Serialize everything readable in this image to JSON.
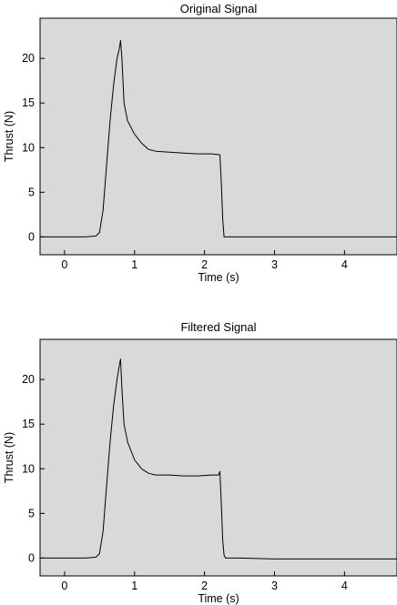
{
  "chart_data": [
    {
      "type": "line",
      "title": "Original Signal",
      "xlabel": "Time (s)",
      "ylabel": "Thrust (N)",
      "xlim": [
        -0.35,
        4.75
      ],
      "ylim": [
        -2,
        24.5
      ],
      "xticks": [
        0,
        1,
        2,
        3,
        4
      ],
      "yticks": [
        0,
        5,
        10,
        15,
        20
      ],
      "xtick_labels": [
        "0",
        "1",
        "2",
        "3",
        "4"
      ],
      "ytick_labels": [
        "0",
        "5",
        "10",
        "15",
        "20"
      ],
      "background": "#d9d9d9",
      "line_color": "#000000",
      "grid": false,
      "series": [
        {
          "x": [
            -0.35,
            0.0,
            0.3,
            0.45,
            0.5,
            0.55,
            0.6,
            0.65,
            0.7,
            0.75,
            0.78,
            0.8,
            0.82,
            0.85,
            0.9,
            1.0,
            1.1,
            1.2,
            1.3,
            1.5,
            1.7,
            1.9,
            2.1,
            2.22,
            2.24,
            2.26,
            2.28,
            2.35,
            2.5,
            3.0,
            3.5,
            4.0,
            4.75
          ],
          "y": [
            0.0,
            0.0,
            0.0,
            0.1,
            0.5,
            3.0,
            8.0,
            13.0,
            17.0,
            20.0,
            21.0,
            22.0,
            20.0,
            15.0,
            13.0,
            11.5,
            10.5,
            9.8,
            9.6,
            9.5,
            9.4,
            9.3,
            9.3,
            9.2,
            6.0,
            2.0,
            0.0,
            0.0,
            0.0,
            0.0,
            0.0,
            0.0,
            0.0
          ]
        }
      ]
    },
    {
      "type": "line",
      "title": "Filtered Signal",
      "xlabel": "Time (s)",
      "ylabel": "Thrust (N)",
      "xlim": [
        -0.35,
        4.75
      ],
      "ylim": [
        -2,
        24.5
      ],
      "xticks": [
        0,
        1,
        2,
        3,
        4
      ],
      "yticks": [
        0,
        5,
        10,
        15,
        20
      ],
      "xtick_labels": [
        "0",
        "1",
        "2",
        "3",
        "4"
      ],
      "ytick_labels": [
        "0",
        "5",
        "10",
        "15",
        "20"
      ],
      "background": "#d9d9d9",
      "line_color": "#000000",
      "grid": false,
      "series": [
        {
          "x": [
            -0.35,
            0.0,
            0.3,
            0.45,
            0.5,
            0.55,
            0.6,
            0.65,
            0.7,
            0.75,
            0.78,
            0.8,
            0.82,
            0.85,
            0.9,
            1.0,
            1.1,
            1.2,
            1.3,
            1.5,
            1.7,
            1.9,
            2.1,
            2.2,
            2.22,
            2.24,
            2.26,
            2.28,
            2.3,
            2.5,
            3.0,
            3.5,
            4.0,
            4.75
          ],
          "y": [
            0.0,
            0.0,
            0.0,
            0.1,
            0.5,
            3.0,
            8.0,
            13.0,
            17.0,
            20.0,
            21.5,
            22.3,
            19.0,
            15.0,
            13.0,
            11.0,
            10.0,
            9.5,
            9.3,
            9.3,
            9.2,
            9.2,
            9.3,
            9.3,
            9.7,
            6.0,
            2.0,
            0.3,
            0.0,
            0.0,
            -0.1,
            -0.1,
            -0.1,
            -0.1
          ]
        }
      ]
    }
  ]
}
